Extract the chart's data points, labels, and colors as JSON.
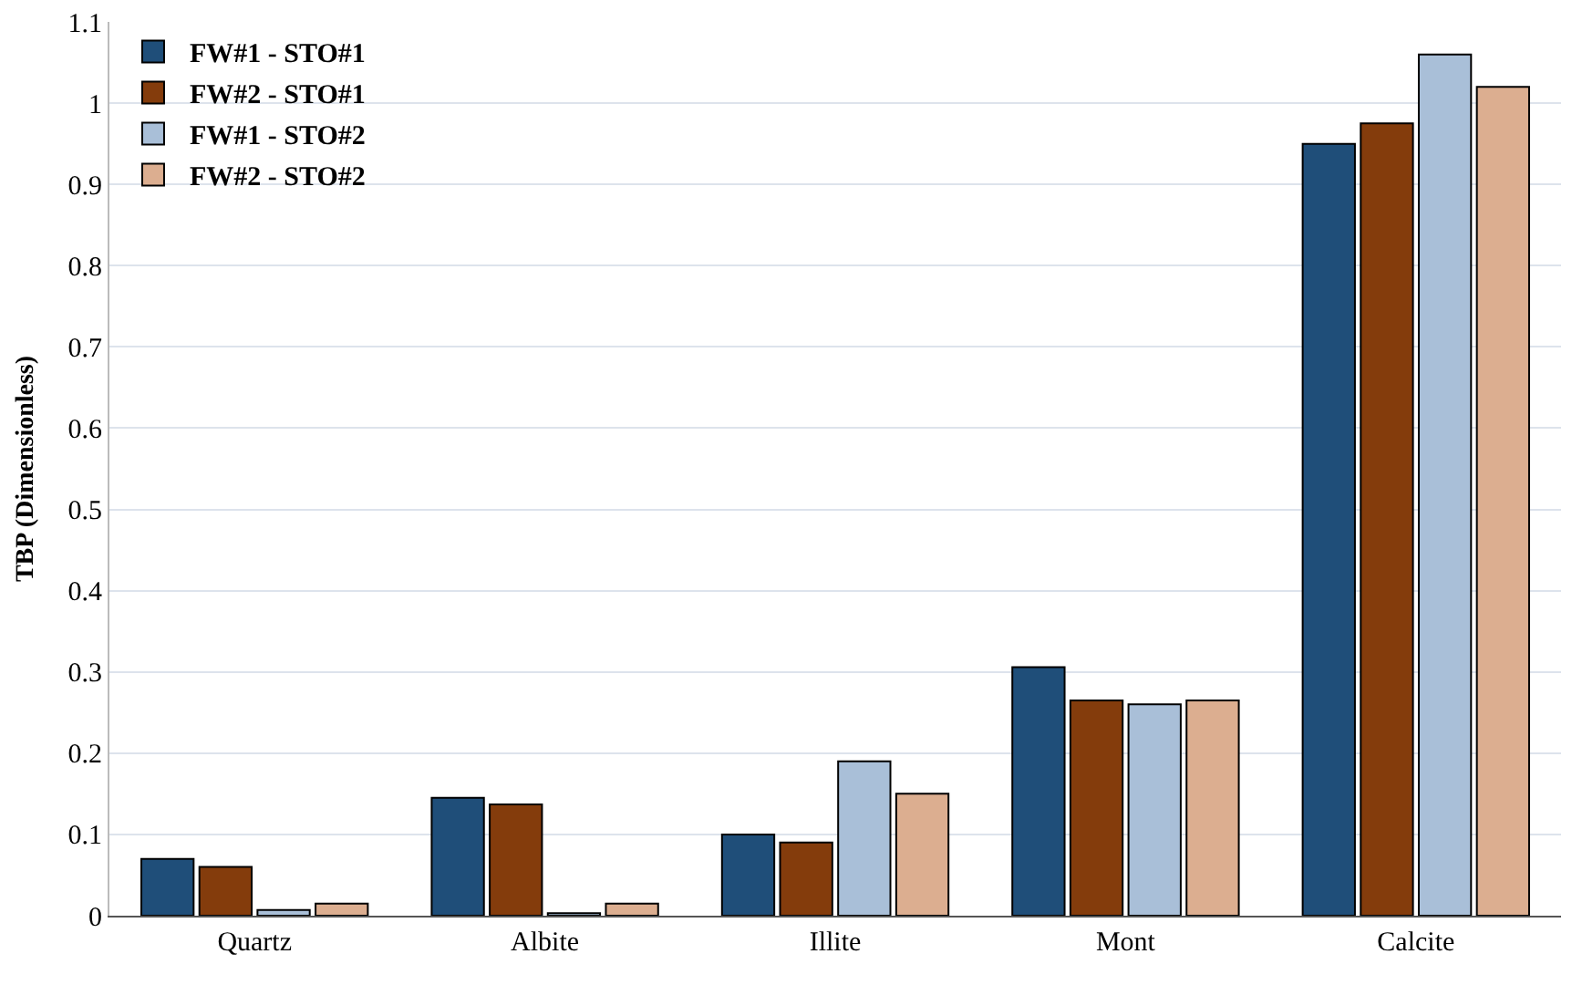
{
  "chart_data": {
    "type": "bar",
    "ylabel": "TBP (Dimensionless)",
    "categories": [
      "Quartz",
      "Albite",
      "Illite",
      "Mont",
      "Calcite"
    ],
    "series": [
      {
        "name": "FW#1 - STO#1",
        "color": "#1f4e79",
        "values": [
          0.07,
          0.145,
          0.1,
          0.306,
          0.95
        ]
      },
      {
        "name": "FW#2 - STO#1",
        "color": "#843c0c",
        "values": [
          0.06,
          0.137,
          0.09,
          0.265,
          0.975
        ]
      },
      {
        "name": "FW#1 - STO#2",
        "color": "#a9bfd8",
        "values": [
          0.007,
          0.003,
          0.19,
          0.26,
          1.06
        ]
      },
      {
        "name": "FW#2 - STO#2",
        "color": "#dcae90",
        "values": [
          0.015,
          0.015,
          0.15,
          0.265,
          1.02
        ]
      }
    ],
    "ylim": [
      0,
      1.1
    ],
    "yticks": [
      0,
      0.1,
      0.2,
      0.3,
      0.4,
      0.5,
      0.6,
      0.7,
      0.8,
      0.9,
      1,
      1.1
    ],
    "grid": "y",
    "legend": "top left"
  }
}
